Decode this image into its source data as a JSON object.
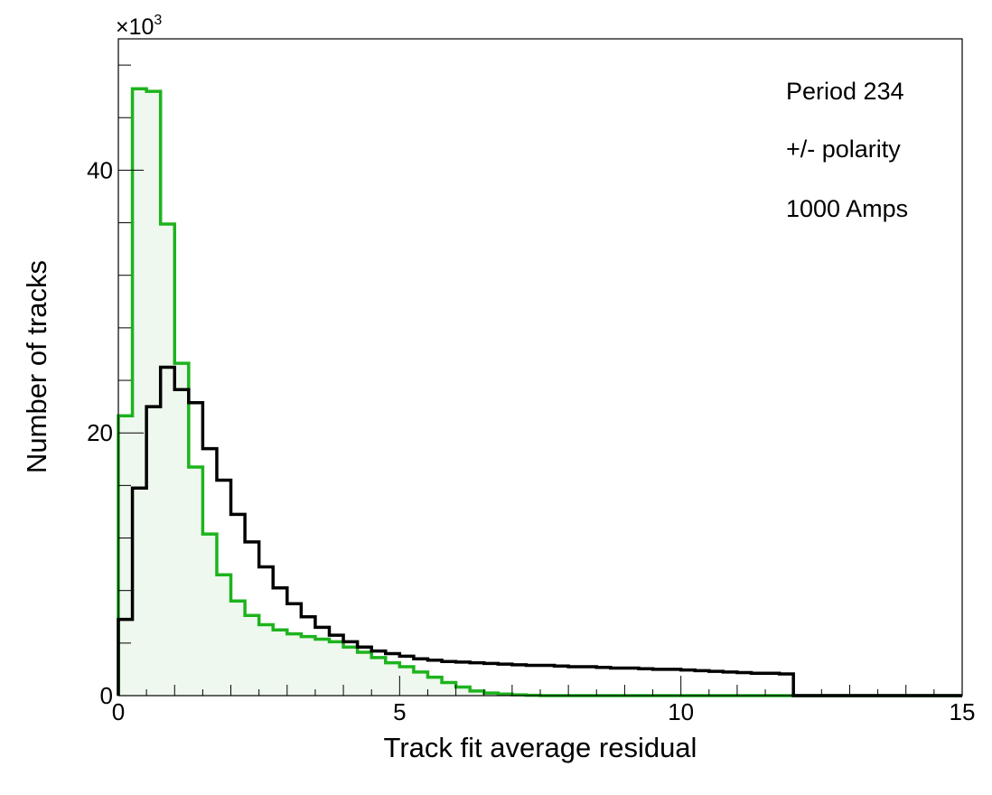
{
  "chart_data": {
    "type": "histogram",
    "xlabel": "Track fit average residual",
    "ylabel": "Number of tracks",
    "y_multiplier_label": "×10",
    "y_multiplier_exponent": "3",
    "xlim": [
      0,
      15
    ],
    "ylim": [
      0,
      50000
    ],
    "x_ticks": [
      0,
      5,
      10,
      15
    ],
    "x_tick_labels": [
      "0",
      "5",
      "10",
      "15"
    ],
    "y_ticks": [
      0,
      20000,
      40000
    ],
    "y_tick_labels": [
      "0",
      "20",
      "40"
    ],
    "annotations": [
      "Period 234",
      "+/- polarity",
      "1000 Amps"
    ],
    "bin_width": 0.25,
    "series": [
      {
        "color": "#1db31d",
        "fill": "#eef8ee",
        "values": [
          21300,
          46200,
          46000,
          35900,
          25300,
          17400,
          12300,
          9200,
          7200,
          6100,
          5400,
          5000,
          4700,
          4500,
          4300,
          4100,
          3700,
          3300,
          2900,
          2500,
          2200,
          1800,
          1400,
          1000,
          650,
          350,
          200,
          120,
          60,
          30,
          0,
          0,
          0,
          0,
          0,
          0,
          0,
          0,
          0,
          0,
          0,
          0,
          0,
          0,
          0,
          0,
          0,
          0,
          0,
          0,
          0,
          0,
          0,
          0,
          0,
          0,
          0,
          0,
          0,
          0
        ]
      },
      {
        "color": "#000000",
        "values": [
          5800,
          15800,
          22000,
          25000,
          23300,
          22300,
          18800,
          16400,
          13800,
          11700,
          9800,
          8200,
          7000,
          6000,
          5200,
          4600,
          4100,
          3700,
          3400,
          3200,
          3000,
          2800,
          2700,
          2600,
          2550,
          2500,
          2450,
          2400,
          2350,
          2300,
          2300,
          2250,
          2200,
          2200,
          2150,
          2100,
          2100,
          2050,
          2000,
          2000,
          1950,
          1900,
          1850,
          1800,
          1750,
          1700,
          1700,
          1650,
          0,
          0,
          0,
          0,
          0,
          0,
          0,
          0,
          0,
          0,
          0,
          0
        ]
      }
    ]
  }
}
